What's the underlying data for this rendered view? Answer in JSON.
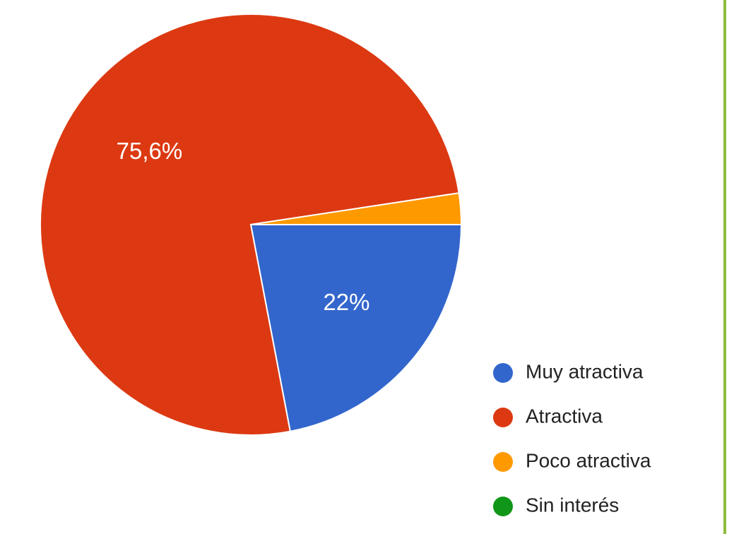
{
  "chart_data": {
    "type": "pie",
    "categories": [
      "Muy atractiva",
      "Atractiva",
      "Poco atractiva",
      "Sin interés"
    ],
    "values": [
      22.0,
      75.6,
      2.4,
      0.0
    ],
    "data_labels": [
      "22%",
      "75,6%",
      "",
      ""
    ],
    "colors": [
      "#3366cc",
      "#dc3912",
      "#ff9900",
      "#109618"
    ],
    "legend_position": "bottom-right"
  }
}
